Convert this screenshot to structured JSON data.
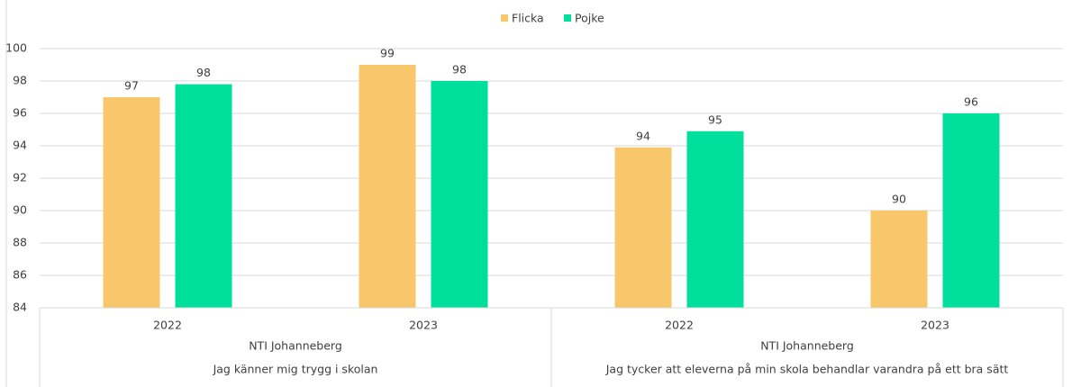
{
  "chart_data": {
    "type": "bar",
    "categories": [
      "2022",
      "2023",
      "2022",
      "2023"
    ],
    "category_groups": [
      {
        "school": "NTI Johanneberg",
        "question": "Jag känner mig trygg i skolan"
      },
      {
        "school": "NTI Johanneberg",
        "question": "Jag tycker att eleverna på min skola behandlar varandra på ett bra sätt"
      }
    ],
    "series": [
      {
        "name": "Flicka",
        "color": "#f8c76c",
        "values": [
          97.0,
          99.0,
          93.9,
          90.0
        ],
        "value_labels": [
          "97",
          "99",
          "94",
          "90"
        ]
      },
      {
        "name": "Pojke",
        "color": "#00df9b",
        "values": [
          97.8,
          98.0,
          94.9,
          96.0
        ],
        "value_labels": [
          "98",
          "98",
          "95",
          "96"
        ]
      }
    ],
    "ylim": [
      84,
      100
    ],
    "yticks": [
      84,
      86,
      88,
      90,
      92,
      94,
      96,
      98,
      100
    ],
    "grid": true,
    "legend": "top"
  }
}
